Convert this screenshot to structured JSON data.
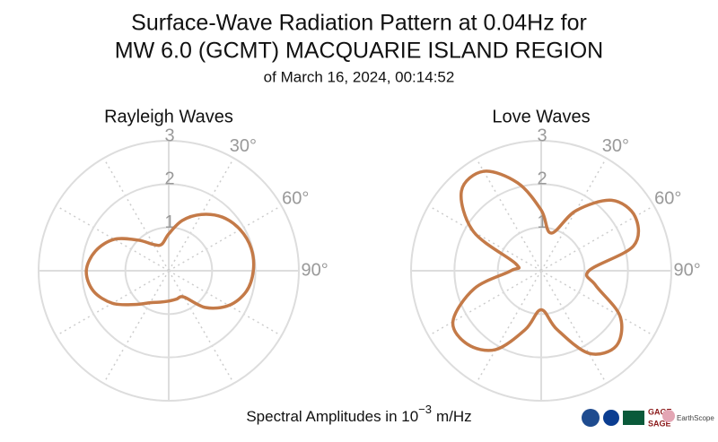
{
  "header": {
    "title": [
      "Surface-Wave Radiation Pattern at 0.04Hz for",
      "MW 6.0 (GCMT) MACQUARIE ISLAND REGION"
    ],
    "subtitle": "of March 16, 2024, 00:14:52"
  },
  "chart_data": [
    {
      "type": "polar",
      "title": "Rayleigh Waves",
      "color": "#c47a48",
      "theta": [
        0,
        15,
        30,
        45,
        60,
        75,
        90,
        105,
        120,
        135,
        150,
        165,
        180,
        195,
        210,
        225,
        240,
        255,
        270,
        285,
        300,
        315,
        330,
        345
      ],
      "r": [
        0.85,
        1.2,
        1.5,
        1.75,
        1.9,
        1.97,
        1.95,
        1.85,
        1.6,
        1.2,
        0.7,
        0.68,
        0.7,
        0.75,
        0.85,
        1.1,
        1.5,
        1.8,
        1.9,
        1.75,
        1.45,
        1.0,
        0.7,
        0.63
      ],
      "rlim": [
        0,
        3
      ],
      "rticks": [
        1,
        2,
        3
      ],
      "theta_grid": [
        0,
        30,
        60,
        90,
        120,
        150,
        180,
        210,
        240,
        270,
        300,
        330
      ],
      "thetaticks": [
        {
          "value": 30,
          "label": "30°"
        },
        {
          "value": 60,
          "label": "60°"
        },
        {
          "value": 90,
          "label": "90°"
        }
      ]
    },
    {
      "type": "polar",
      "title": "Love Waves",
      "color": "#c47a48",
      "theta": [
        0,
        15,
        30,
        45,
        60,
        75,
        90,
        105,
        120,
        135,
        150,
        165,
        180,
        195,
        210,
        225,
        240,
        255,
        270,
        285,
        300,
        315,
        330,
        345
      ],
      "r": [
        1.4,
        0.9,
        1.6,
        2.3,
        2.5,
        2.2,
        1.1,
        1.3,
        2.1,
        2.45,
        2.2,
        1.4,
        0.9,
        1.4,
        2.1,
        2.4,
        2.35,
        1.6,
        0.7,
        0.6,
        1.8,
        2.6,
        2.65,
        2.1
      ],
      "rlim": [
        0,
        3
      ],
      "rticks": [
        1,
        2,
        3
      ],
      "theta_grid": [
        0,
        30,
        60,
        90,
        120,
        150,
        180,
        210,
        240,
        270,
        300,
        330
      ],
      "thetaticks": [
        {
          "value": 30,
          "label": "30°"
        },
        {
          "value": 60,
          "label": "60°"
        },
        {
          "value": 90,
          "label": "90°"
        }
      ]
    }
  ],
  "footer": {
    "label": "Spectral Amplitudes in 10",
    "exponent": "−3",
    "unit": "m/Hz"
  },
  "logos": [
    "GAGE",
    "SAGE",
    "EarthScope"
  ]
}
